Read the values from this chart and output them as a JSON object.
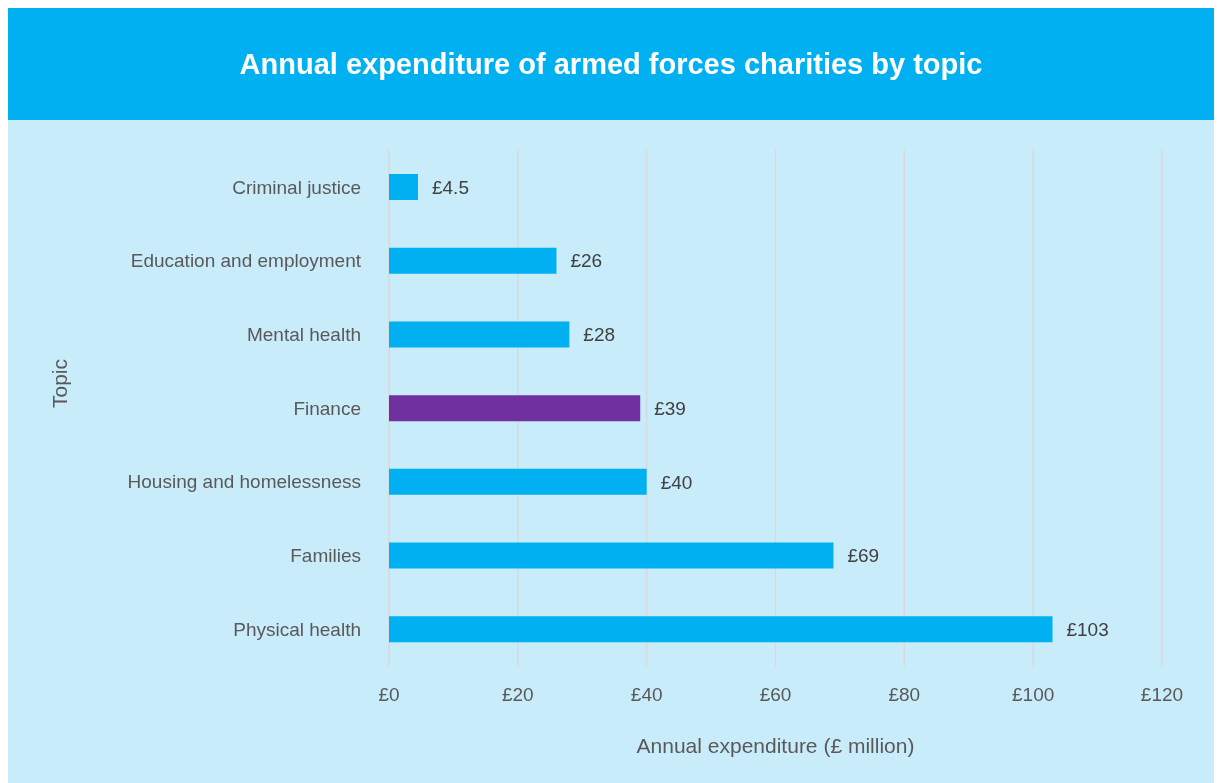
{
  "chart_data": {
    "type": "bar",
    "orientation": "horizontal",
    "title": "Annual expenditure of armed forces charities by topic",
    "xlabel": "Annual expenditure (£ million)",
    "ylabel": "Topic",
    "categories": [
      "Criminal justice",
      "Education and employment",
      "Mental health",
      "Finance",
      "Housing and homelessness",
      "Families",
      "Physical health"
    ],
    "values": [
      4.5,
      26,
      28,
      39,
      40,
      69,
      103
    ],
    "colors": [
      "#00b0f0",
      "#00b0f0",
      "#00b0f0",
      "#7030a0",
      "#00b0f0",
      "#00b0f0",
      "#00b0f0"
    ],
    "value_labels": [
      "£4.5",
      "£26",
      "£28",
      "£39",
      "£40",
      "£69",
      "£103"
    ],
    "xlim": [
      0,
      120
    ],
    "xticks": [
      {
        "value": 0,
        "label": "£0"
      },
      {
        "value": 20,
        "label": "£20"
      },
      {
        "value": 40,
        "label": "£40"
      },
      {
        "value": 60,
        "label": "£60"
      },
      {
        "value": 80,
        "label": "£80"
      },
      {
        "value": 100,
        "label": "£100"
      },
      {
        "value": 120,
        "label": "£120"
      }
    ],
    "grid": "x"
  }
}
